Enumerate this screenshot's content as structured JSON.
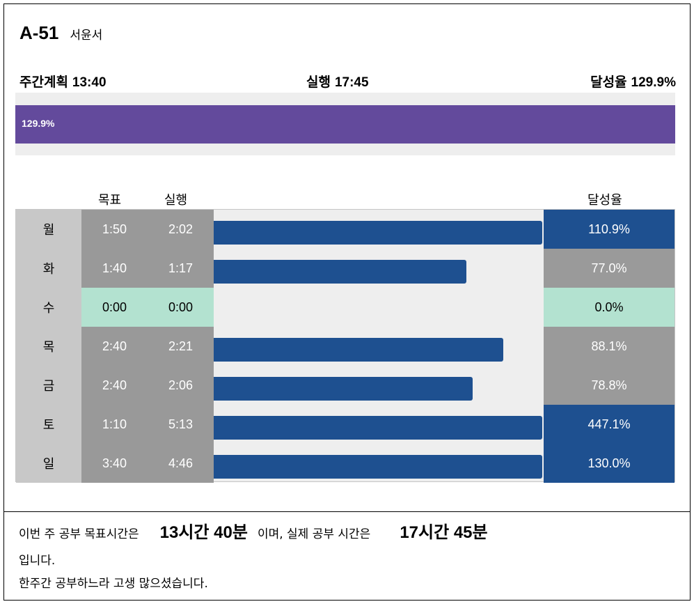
{
  "header": {
    "code": "A-51",
    "name": "서윤서"
  },
  "summary": {
    "plan_label": "주간계획",
    "plan_value": "13:40",
    "actual_label": "실행",
    "actual_value": "17:45",
    "rate_label": "달성율",
    "rate_value": "129.9%"
  },
  "total_bar": {
    "label": "129.9%",
    "fill_fraction": 1.0,
    "color": "#634a9c"
  },
  "table": {
    "columns": {
      "goal": "목표",
      "actual": "실행",
      "rate": "달성율"
    },
    "rows": [
      {
        "day": "월",
        "goal": "1:50",
        "actual": "2:02",
        "rate": "110.9%",
        "bar_fraction": 1.0,
        "style": "high"
      },
      {
        "day": "화",
        "goal": "1:40",
        "actual": "1:17",
        "rate": "77.0%",
        "bar_fraction": 0.77,
        "style": "low"
      },
      {
        "day": "수",
        "goal": "0:00",
        "actual": "0:00",
        "rate": "0.0%",
        "bar_fraction": 0.0,
        "style": "zero"
      },
      {
        "day": "목",
        "goal": "2:40",
        "actual": "2:21",
        "rate": "88.1%",
        "bar_fraction": 0.881,
        "style": "low"
      },
      {
        "day": "금",
        "goal": "2:40",
        "actual": "2:06",
        "rate": "78.8%",
        "bar_fraction": 0.788,
        "style": "low"
      },
      {
        "day": "토",
        "goal": "1:10",
        "actual": "5:13",
        "rate": "447.1%",
        "bar_fraction": 1.0,
        "style": "high"
      },
      {
        "day": "일",
        "goal": "3:40",
        "actual": "4:46",
        "rate": "130.0%",
        "bar_fraction": 1.0,
        "style": "high"
      }
    ]
  },
  "footer": {
    "line1_a": "이번 주 공부 목표시간은",
    "goal_total": "13시간 40분",
    "line1_b": "이며, 실제 공부 시간은",
    "actual_total": "17시간 45분",
    "line2": "입니다.",
    "line3": "한주간 공부하느라 고생 많으셨습니다."
  },
  "colors": {
    "bar_blue": "#1e5090",
    "gray": "#999999",
    "mint": "#b3e2d0",
    "purple": "#634a9c"
  }
}
